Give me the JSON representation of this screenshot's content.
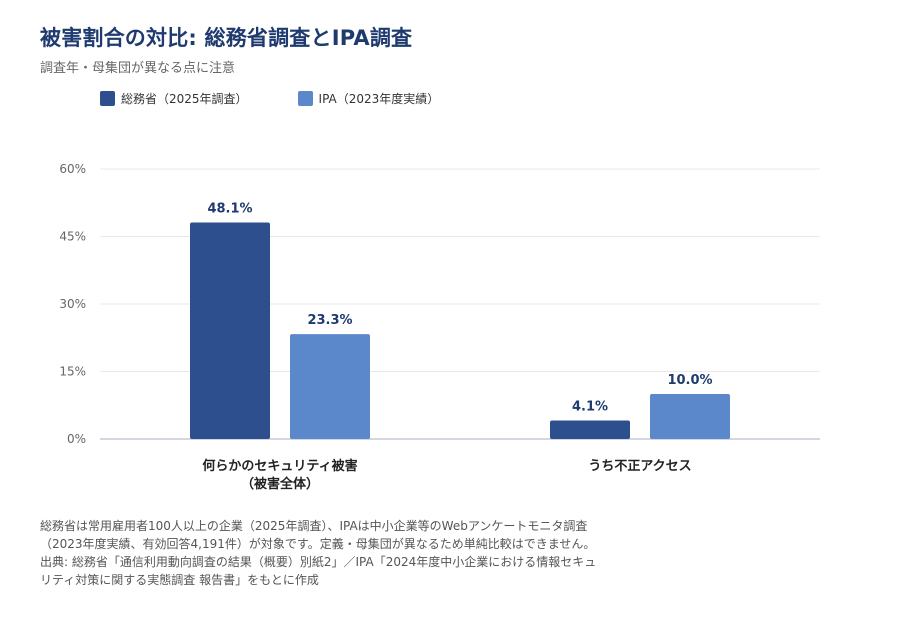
{
  "title": "被害割合の対比: 総務省調査とIPA調査",
  "subtitle": "調査年・母集団が異なる点に注意",
  "colors": {
    "series_1": "#2d4f8e",
    "series_2": "#5b87cb",
    "grid": "#e8e8e8",
    "axis": "#c8c8d8",
    "label_text": "#1f3a6e"
  },
  "chart_data": {
    "type": "bar",
    "title": "被害割合の対比: 総務省調査とIPA調査",
    "subtitle": "調査年・母集団が異なる点に注意",
    "categories": [
      [
        "何らかのセキュリティ被害",
        "（被害全体）"
      ],
      [
        "うち不正アクセス"
      ]
    ],
    "series": [
      {
        "name": "総務省（2025年調査）",
        "values": [
          48.1,
          4.1
        ],
        "labels": [
          "48.1%",
          "4.1%"
        ]
      },
      {
        "name": "IPA（2023年度実績）",
        "values": [
          23.3,
          10.0
        ],
        "labels": [
          "23.3%",
          "10.0%"
        ]
      }
    ],
    "y_ticks": [
      0,
      15,
      30,
      45,
      60
    ],
    "y_tick_labels": [
      "0%",
      "15%",
      "30%",
      "45%",
      "60%"
    ],
    "ylim": [
      0,
      60
    ],
    "xlabel": "",
    "ylabel": "",
    "grid": true,
    "legend": "top-left"
  },
  "footnote": {
    "lines": [
      "総務省は常用雇用者100人以上の企業（2025年調査）、IPAは中小企業等のWebアンケートモニタ調査（2023年度実績、有効回答4,191件）が対象です。定義・母集団が異なるため単純比較はできません。",
      "出典: 総務省「通信利用動向調査の結果（概要）別紙2」／IPA「2024年度中小企業における情報セキュリティ対策に関する実態調査 報告書」をもとに作成"
    ]
  }
}
